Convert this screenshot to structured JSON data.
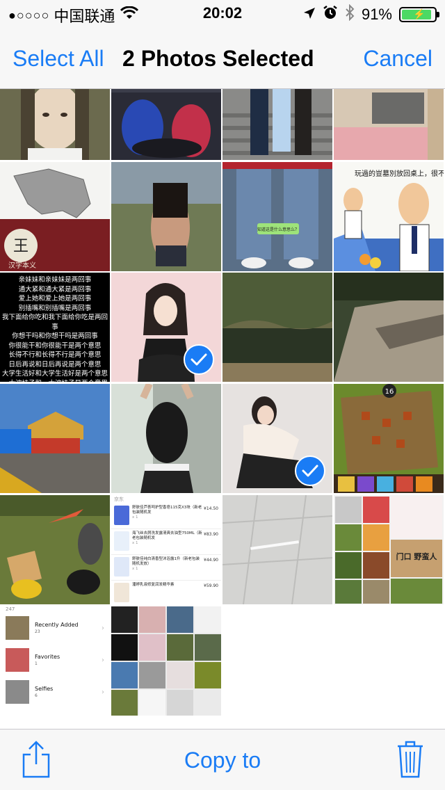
{
  "statusbar": {
    "signal": "●○○○○",
    "carrier": "中国联通",
    "time": "20:02",
    "battery": "91%",
    "battery_level": 0.91
  },
  "navbar": {
    "select_all": "Select All",
    "title": "2 Photos Selected",
    "cancel": "Cancel"
  },
  "grid": {
    "poem_lines": [
      "亲妹妹和亲妹妹是两回事",
      "通大紧和通大紧是两回事",
      "爱上她和爱上她是两回事",
      "别插嘴和别插嘴是两回事",
      "我下面给你吃和我下面给你吃是两回事",
      "你想干吗和你想干吗是两回事",
      "你很能干和你很能干是两个意思",
      "长得不行和长得不行是两个意思",
      "日后再说和日后再说是两个意思",
      "大学生活好和大学生活好是两个意思",
      "一大波妹子和一大波妹子是两个意思"
    ],
    "comic_text": "玩過的豈墓別放回桌上，很不衛生！",
    "wechat_bubble": "知道这是什么意思么？",
    "logo_char": "王",
    "logo_caption": "汉字本义",
    "game_badge": "16",
    "order": {
      "header": "京东",
      "items": [
        {
          "name": "舒肤佳芦荟呵护型香皂115克X3块（新老包装随机发",
          "price": "¥14.50",
          "qty": "x 1"
        },
        {
          "name": "海飞丝去屑洗发露清爽去油型750ML（新老包装随机发",
          "price": "¥83.90",
          "qty": "x 1"
        },
        {
          "name": "舒肤佳纯白清香型沐浴露1升（新老包装随机发放）",
          "price": "¥44.90",
          "qty": "x 1"
        },
        {
          "name": "潘婷乳液修复润发精华素",
          "price": "¥59.90",
          "qty": ""
        }
      ]
    },
    "albums": [
      {
        "name": "Recently Added",
        "count": "23"
      },
      {
        "name": "Favorites",
        "count": "1"
      },
      {
        "name": "Selfies",
        "count": "6"
      }
    ],
    "album_top_count": "247",
    "movie_title": "门口\n野蛮人"
  },
  "toolbar": {
    "copy_to": "Copy to",
    "share_icon": "share-icon",
    "trash_icon": "trash-icon"
  },
  "colors": {
    "accent": "#1a7cf5",
    "battery_green": "#4cd964",
    "bar_bg": "#f7f7f7"
  }
}
